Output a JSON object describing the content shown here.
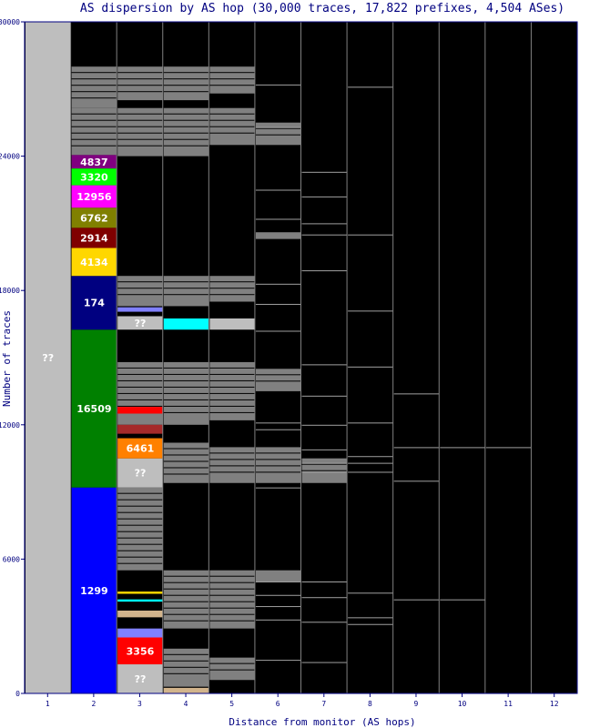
{
  "chart_data": {
    "type": "bar",
    "title": "AS dispersion by AS hop (30,000 traces, 17,822 prefixes, 4,504 ASes)",
    "xlabel": "Distance from monitor (AS hops)",
    "ylabel": "Number of traces",
    "ylim": [
      0,
      30000
    ],
    "yticks": [
      "0",
      "6000",
      "12000",
      "18000",
      "24000",
      "30000"
    ],
    "categories": [
      "1",
      "2",
      "3",
      "4",
      "5",
      "6",
      "7",
      "8",
      "9",
      "10",
      "11",
      "12"
    ],
    "background_color": "#000000",
    "unknown_color": "#bebebe",
    "other_color": "#808080",
    "segments": [
      {
        "hop": 1,
        "as": "??",
        "start": 0,
        "end": 30000,
        "color": "#bebebe"
      },
      {
        "hop": 2,
        "as": "1299",
        "start": 0,
        "end": 9200,
        "color": "#0000ff"
      },
      {
        "hop": 2,
        "as": "16509",
        "start": 9200,
        "end": 16250,
        "color": "#008000"
      },
      {
        "hop": 2,
        "as": "174",
        "start": 16250,
        "end": 18650,
        "color": "#000080"
      },
      {
        "hop": 2,
        "as": "4134",
        "start": 18650,
        "end": 19900,
        "color": "#ffd700"
      },
      {
        "hop": 2,
        "as": "2914",
        "start": 19900,
        "end": 20800,
        "color": "#800000"
      },
      {
        "hop": 2,
        "as": "6762",
        "start": 20800,
        "end": 21700,
        "color": "#808000"
      },
      {
        "hop": 2,
        "as": "12956",
        "start": 21700,
        "end": 22700,
        "color": "#ff00ff"
      },
      {
        "hop": 2,
        "as": "3320",
        "start": 22700,
        "end": 23450,
        "color": "#00ff00"
      },
      {
        "hop": 2,
        "as": "4837",
        "start": 23450,
        "end": 24050,
        "color": "#800080"
      },
      {
        "hop": 3,
        "as": "??",
        "start": 0,
        "end": 1300,
        "color": "#bebebe"
      },
      {
        "hop": 3,
        "as": "3356",
        "start": 1300,
        "end": 2500,
        "color": "#ff0000"
      },
      {
        "hop": 3,
        "as": "",
        "start": 2500,
        "end": 2900,
        "color": "#8080ff"
      },
      {
        "hop": 3,
        "as": "",
        "start": 3400,
        "end": 3700,
        "color": "#d2b48c"
      },
      {
        "hop": 3,
        "as": "",
        "start": 4100,
        "end": 4200,
        "color": "#00ffff"
      },
      {
        "hop": 3,
        "as": "",
        "start": 4450,
        "end": 4550,
        "color": "#ffd700"
      },
      {
        "hop": 3,
        "as": "??",
        "start": 9200,
        "end": 10500,
        "color": "#bebebe"
      },
      {
        "hop": 3,
        "as": "6461",
        "start": 10500,
        "end": 11400,
        "color": "#ff8000"
      },
      {
        "hop": 3,
        "as": "",
        "start": 11600,
        "end": 12000,
        "color": "#a52a2a"
      },
      {
        "hop": 3,
        "as": "",
        "start": 12500,
        "end": 12800,
        "color": "#ff0000"
      },
      {
        "hop": 3,
        "as": "??",
        "start": 16250,
        "end": 16850,
        "color": "#bebebe"
      },
      {
        "hop": 3,
        "as": "",
        "start": 17050,
        "end": 17250,
        "color": "#8080ff"
      },
      {
        "hop": 4,
        "as": "",
        "start": 0,
        "end": 250,
        "color": "#d2b48c"
      },
      {
        "hop": 4,
        "as": "",
        "start": 16250,
        "end": 16750,
        "color": "#00ffff"
      },
      {
        "hop": 5,
        "as": "",
        "start": 16250,
        "end": 16750,
        "color": "#bebebe"
      }
    ],
    "other_blocks": [
      {
        "hop": 2,
        "start": 24050,
        "end": 26150
      },
      {
        "hop": 2,
        "start": 26150,
        "end": 28000
      },
      {
        "hop": 3,
        "start": 5500,
        "end": 9200
      },
      {
        "hop": 3,
        "start": 12000,
        "end": 14800
      },
      {
        "hop": 3,
        "start": 17300,
        "end": 18650
      },
      {
        "hop": 3,
        "start": 24000,
        "end": 26150
      },
      {
        "hop": 3,
        "start": 26500,
        "end": 28000
      },
      {
        "hop": 4,
        "start": 300,
        "end": 2000
      },
      {
        "hop": 4,
        "start": 2900,
        "end": 5500
      },
      {
        "hop": 4,
        "start": 9400,
        "end": 11200
      },
      {
        "hop": 4,
        "start": 12000,
        "end": 14800
      },
      {
        "hop": 4,
        "start": 17300,
        "end": 18650
      },
      {
        "hop": 4,
        "start": 24000,
        "end": 26150
      },
      {
        "hop": 4,
        "start": 26500,
        "end": 28000
      },
      {
        "hop": 5,
        "start": 600,
        "end": 1600
      },
      {
        "hop": 5,
        "start": 2900,
        "end": 5500
      },
      {
        "hop": 5,
        "start": 9400,
        "end": 11000
      },
      {
        "hop": 5,
        "start": 12200,
        "end": 14800
      },
      {
        "hop": 5,
        "start": 17500,
        "end": 18650
      },
      {
        "hop": 5,
        "start": 24500,
        "end": 26150
      },
      {
        "hop": 5,
        "start": 26800,
        "end": 28000
      },
      {
        "hop": 6,
        "start": 5000,
        "end": 5500
      },
      {
        "hop": 6,
        "start": 9400,
        "end": 11000
      },
      {
        "hop": 6,
        "start": 13500,
        "end": 14500
      },
      {
        "hop": 6,
        "start": 20300,
        "end": 20600
      },
      {
        "hop": 6,
        "start": 24500,
        "end": 25500
      },
      {
        "hop": 7,
        "start": 9400,
        "end": 10500
      }
    ]
  }
}
